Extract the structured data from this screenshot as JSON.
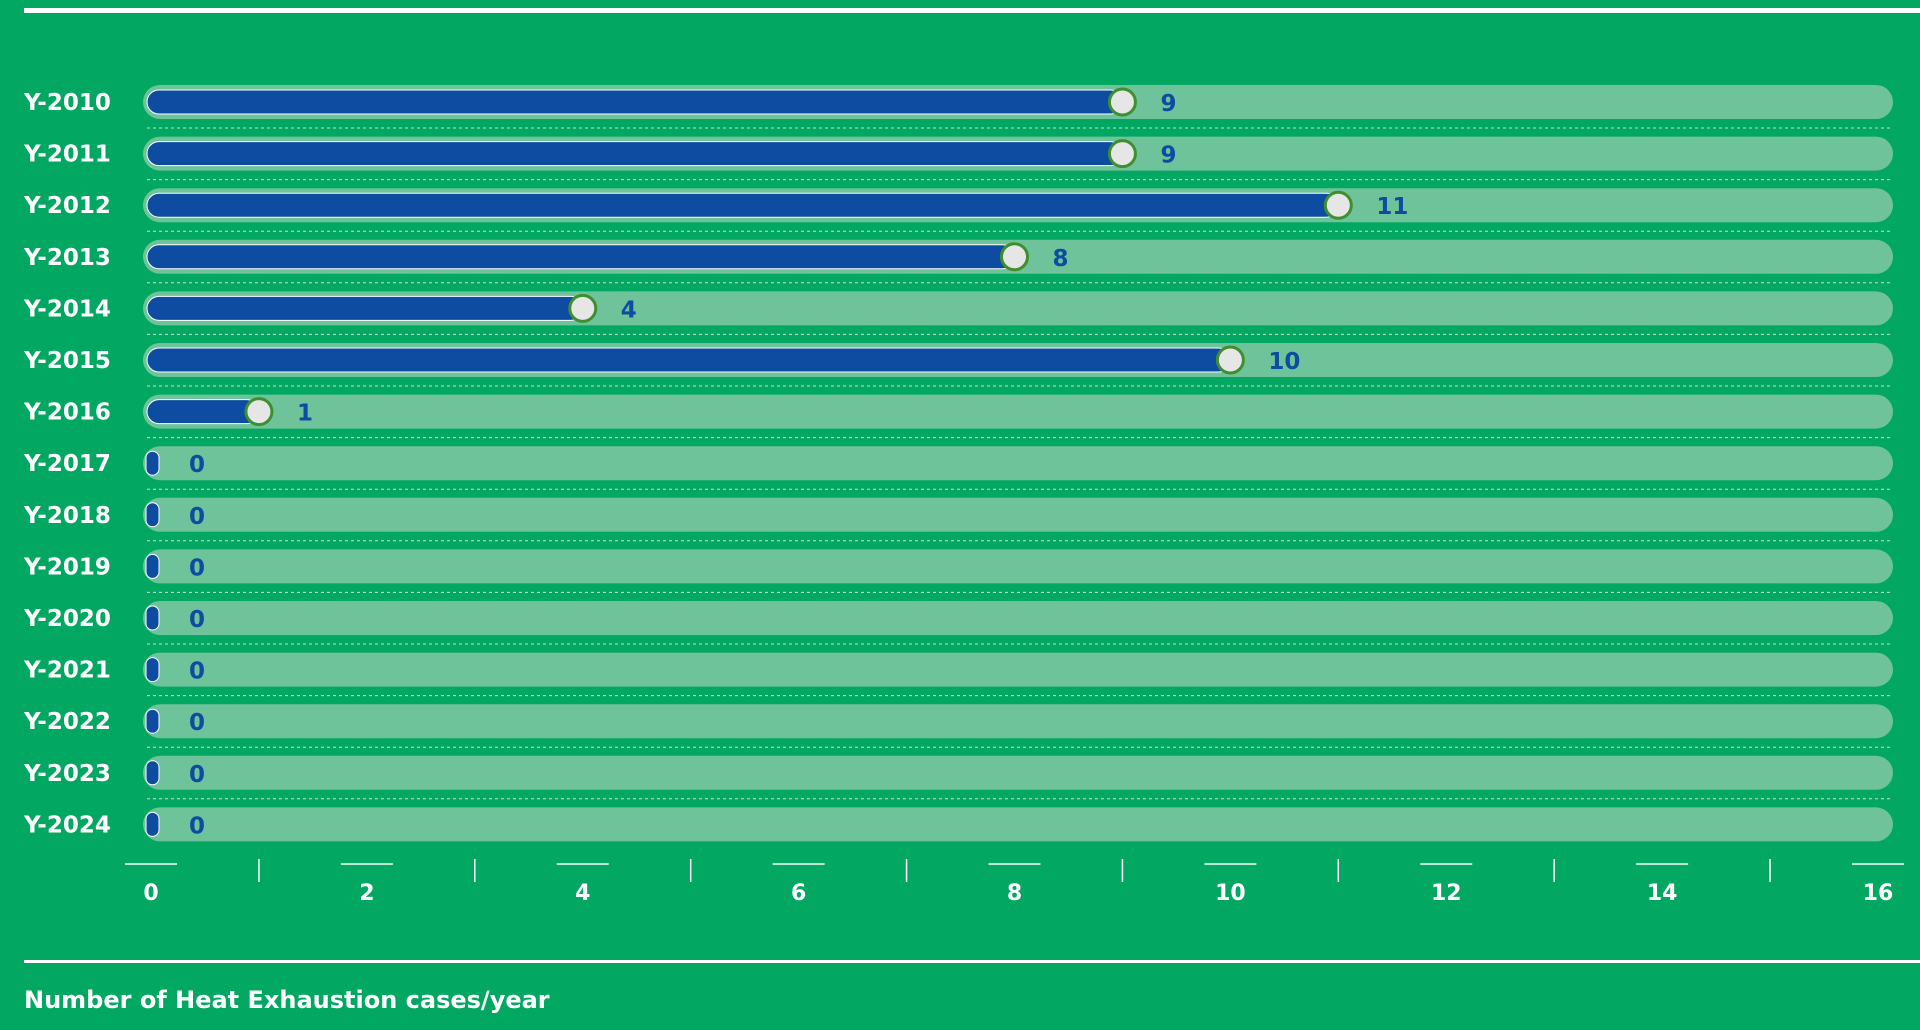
{
  "chart_data": {
    "type": "bar",
    "orientation": "horizontal",
    "title": "",
    "xlabel": "Number of Heat Exhaustion cases/year",
    "ylabel": "",
    "categories": [
      "Y-2010",
      "Y-2011",
      "Y-2012",
      "Y-2013",
      "Y-2014",
      "Y-2015",
      "Y-2016",
      "Y-2017",
      "Y-2018",
      "Y-2019",
      "Y-2020",
      "Y-2021",
      "Y-2022",
      "Y-2023",
      "Y-2024"
    ],
    "values": [
      9,
      9,
      11,
      8,
      4,
      10,
      1,
      0,
      0,
      0,
      0,
      0,
      0,
      0,
      0
    ],
    "xlim": [
      0,
      16
    ],
    "xticks": [
      0,
      2,
      4,
      6,
      8,
      10,
      12,
      14,
      16
    ],
    "xtick_labels": [
      "0",
      "2",
      "4",
      "6",
      "8",
      "10",
      "12",
      "14",
      "16"
    ],
    "data_labels": [
      "9",
      "9",
      "11",
      "8",
      "4",
      "10",
      "1",
      "0",
      "0",
      "0",
      "0",
      "0",
      "0",
      "0",
      "0"
    ],
    "grid": false,
    "legend": "none"
  },
  "colors": {
    "background": "#02a862",
    "track": "#6fc39a",
    "bar": "#0d4ca1",
    "knob_fill": "#e6e6e6",
    "knob_ring": "#3f8f2f",
    "label_text": "#ffffff",
    "value_text": "#0d4ca1",
    "rule": "#ffffff"
  }
}
